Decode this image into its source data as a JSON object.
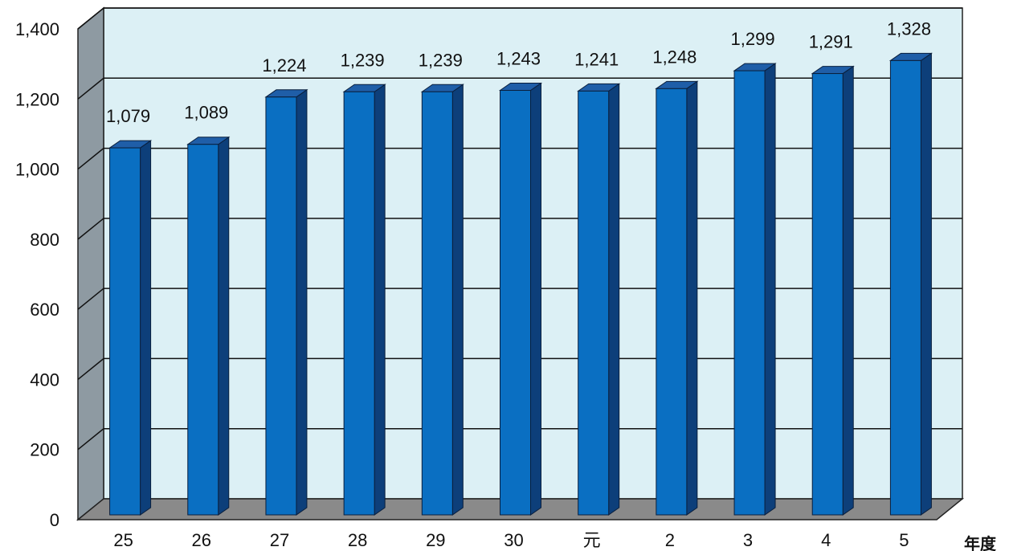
{
  "chart_data": {
    "type": "bar",
    "categories": [
      "25",
      "26",
      "27",
      "28",
      "29",
      "30",
      "元",
      "2",
      "3",
      "4",
      "5"
    ],
    "values": [
      1079,
      1089,
      1224,
      1239,
      1239,
      1243,
      1241,
      1248,
      1299,
      1291,
      1328
    ],
    "data_labels": [
      "1,079",
      "1,089",
      "1,224",
      "1,239",
      "1,239",
      "1,243",
      "1,241",
      "1,248",
      "1,299",
      "1,291",
      "1,328"
    ],
    "y_ticks": [
      "0",
      "200",
      "400",
      "600",
      "800",
      "1,000",
      "1,200",
      "1,400"
    ],
    "y_tick_values": [
      0,
      200,
      400,
      600,
      800,
      1000,
      1200,
      1400
    ],
    "ylim": [
      0,
      1400
    ],
    "x_unit_label": "年度",
    "title": "",
    "xlabel": "",
    "ylabel": "",
    "grid": true,
    "colors": {
      "bar_front": "#0a6fc2",
      "bar_top": "#1f5ea8",
      "bar_side": "#0d3f7a",
      "wall_back": "#dcf0f5",
      "wall_left": "#8e9aa2",
      "floor": "#8a8a8a"
    }
  }
}
